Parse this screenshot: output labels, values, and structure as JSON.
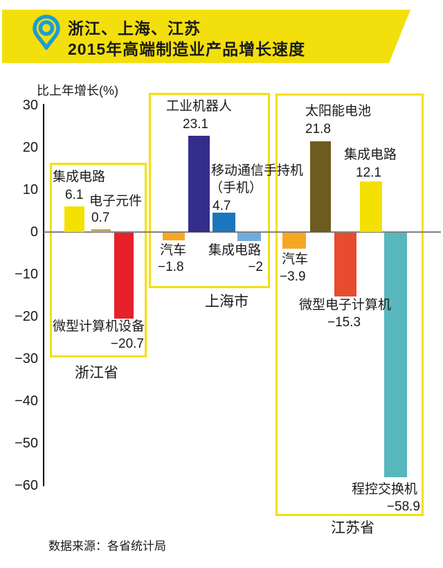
{
  "header": {
    "title_line1": "浙江、上海、江苏",
    "title_line2": "2015年高端制造业产品增长速度",
    "banner_color": "#F3DF0B",
    "pin_color": "#1B9CD8"
  },
  "axis": {
    "label": "比上年增长(%)",
    "ticks": [
      "30",
      "20",
      "10",
      "0",
      "−10",
      "−20",
      "−30",
      "−40",
      "−50",
      "−60"
    ]
  },
  "footer": {
    "source": "数据来源：各省统计局"
  },
  "chart_data": {
    "type": "bar",
    "title": "浙江、上海、江苏 2015年高端制造业产品增长速度",
    "ylabel": "比上年增长(%)",
    "ylim": [
      -60,
      30
    ],
    "grid": false,
    "legend": "none",
    "group_outline_color": "#F5DF05",
    "zero_line_color": "#808080",
    "groups": [
      {
        "name": "浙江省",
        "bars": [
          {
            "label": "集成电路",
            "value": 6.1,
            "display": "6.1",
            "color": "#F5E003"
          },
          {
            "label": "电子元件",
            "value": 0.7,
            "display": "0.7",
            "color": "#C3A368"
          },
          {
            "label": "微型计算机设备",
            "value": -20.7,
            "display": "−20.7",
            "color": "#E6212A"
          }
        ]
      },
      {
        "name": "上海市",
        "bars": [
          {
            "label": "汽车",
            "value": -1.8,
            "display": "−1.8",
            "color": "#F7A823"
          },
          {
            "label": "工业机器人",
            "value": 23.1,
            "display": "23.1",
            "color": "#332E8C"
          },
          {
            "label": "移动通信手持机",
            "label2": "（手机）",
            "value": 4.7,
            "display": "4.7",
            "color": "#1C76BC"
          },
          {
            "label": "集成电路",
            "value": -2,
            "display": "−2",
            "color": "#71ACE0"
          }
        ]
      },
      {
        "name": "江苏省",
        "bars": [
          {
            "label": "汽车",
            "value": -3.9,
            "display": "−3.9",
            "color": "#F7A823"
          },
          {
            "label": "太阳能电池",
            "value": 21.8,
            "display": "21.8",
            "color": "#6D5C20"
          },
          {
            "label": "微型电子计算机",
            "value": -15.3,
            "display": "−15.3",
            "color": "#E74C2E"
          },
          {
            "label": "集成电路",
            "value": 12.1,
            "display": "12.1",
            "color": "#F5E003"
          },
          {
            "label": "程控交换机",
            "value": -58.9,
            "display": "−58.9",
            "color": "#58B7BC"
          }
        ]
      }
    ]
  }
}
